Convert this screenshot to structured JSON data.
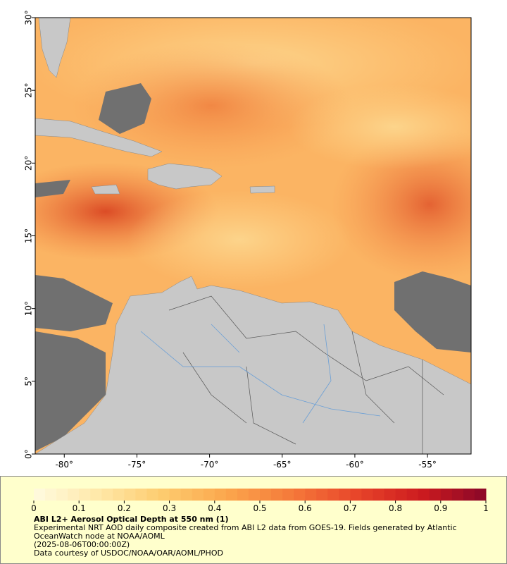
{
  "map": {
    "xlim": [
      -82,
      -52
    ],
    "ylim": [
      0,
      30
    ],
    "xticks": [
      {
        "value": -80,
        "label": "-80°"
      },
      {
        "value": -75,
        "label": "-75°"
      },
      {
        "value": -70,
        "label": "-70°"
      },
      {
        "value": -65,
        "label": "-65°"
      },
      {
        "value": -60,
        "label": "-60°"
      },
      {
        "value": -55,
        "label": "-55°"
      }
    ],
    "yticks": [
      {
        "value": 0,
        "label": "0°"
      },
      {
        "value": 5,
        "label": "5°"
      },
      {
        "value": 10,
        "label": "10°"
      },
      {
        "value": 15,
        "label": "15°"
      },
      {
        "value": 20,
        "label": "20°"
      },
      {
        "value": 25,
        "label": "25°"
      },
      {
        "value": 30,
        "label": "30°"
      }
    ]
  },
  "colorbar": {
    "lim": [
      0,
      1
    ],
    "ticks": [
      0,
      0.1,
      0.2,
      0.3,
      0.4,
      0.5,
      0.6,
      0.7,
      0.8,
      0.9,
      1
    ],
    "colors": [
      "#fffbe0",
      "#ffe8a8",
      "#fdcb6e",
      "#fba64c",
      "#f5793a",
      "#e8452a",
      "#cc1b1f",
      "#8a0728"
    ]
  },
  "caption": {
    "title": "ABI L2+ Aerosol Optical Depth at 550 nm (1)",
    "description": "Experimental NRT AOD daily composite created from ABI L2 data from GOES-19. Fields generated by Atlantic OceanWatch node at NOAA/AOML",
    "date": "(2025-08-06T00:00:00Z)",
    "credit": "Data courtesy of USDOC/NOAA/OAR/AOML/PHOD"
  }
}
